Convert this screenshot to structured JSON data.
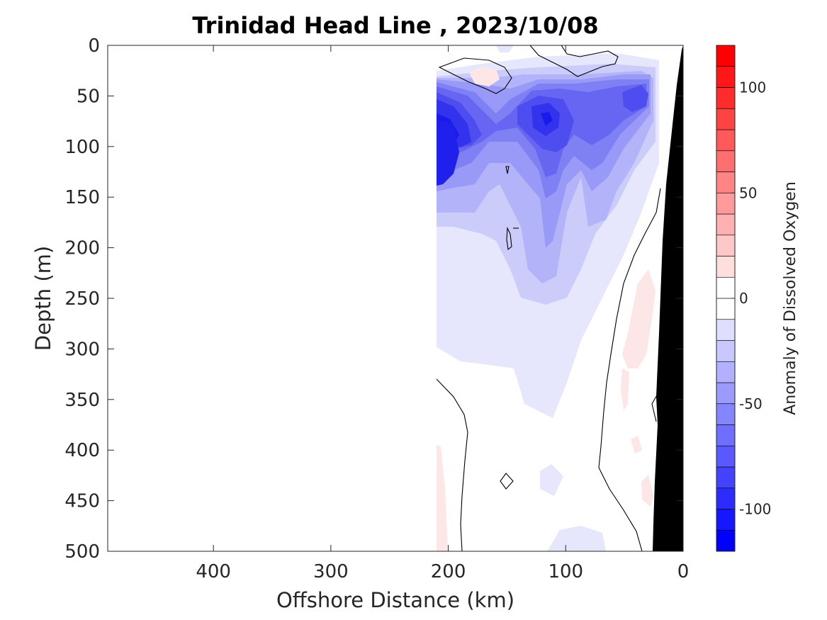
{
  "chart_data": {
    "type": "heatmap",
    "title": "Trinidad Head Line , 2023/10/08",
    "xlabel": "Offshore Distance (km)",
    "ylabel": "Depth (m)",
    "xlim": [
      490,
      0
    ],
    "ylim": [
      0,
      500
    ],
    "x_reversed": true,
    "y_reversed": true,
    "xticks": [
      400,
      300,
      200,
      100,
      0
    ],
    "yticks": [
      0,
      50,
      100,
      150,
      200,
      250,
      300,
      350,
      400,
      450,
      500
    ],
    "colorbar": {
      "label": "Anomaly of Dissolved Oxygen",
      "range": [
        -120,
        120
      ],
      "levels": [
        -120,
        -110,
        -100,
        -90,
        -80,
        -70,
        -60,
        -50,
        -40,
        -30,
        -20,
        -10,
        0,
        10,
        20,
        30,
        40,
        50,
        60,
        70,
        80,
        90,
        100,
        110,
        120
      ],
      "ticks": [
        100,
        50,
        0,
        -50,
        -100
      ],
      "colormap": "blue-white-red"
    },
    "data_extent_km": [
      0,
      210
    ],
    "bathymetry_color": "#000000",
    "zero_contour_color": "#000000",
    "features": [
      {
        "name": "minimum",
        "x_km": 200,
        "depth_m": 100,
        "value": -95
      },
      {
        "name": "minimum",
        "x_km": 120,
        "depth_m": 70,
        "value": -80
      },
      {
        "name": "minimum",
        "x_km": 40,
        "depth_m": 50,
        "value": -70
      },
      {
        "name": "maximum",
        "x_km": 170,
        "depth_m": 30,
        "value": 8
      },
      {
        "name": "maximum",
        "x_km": 30,
        "depth_m": 250,
        "value": 10
      }
    ]
  }
}
